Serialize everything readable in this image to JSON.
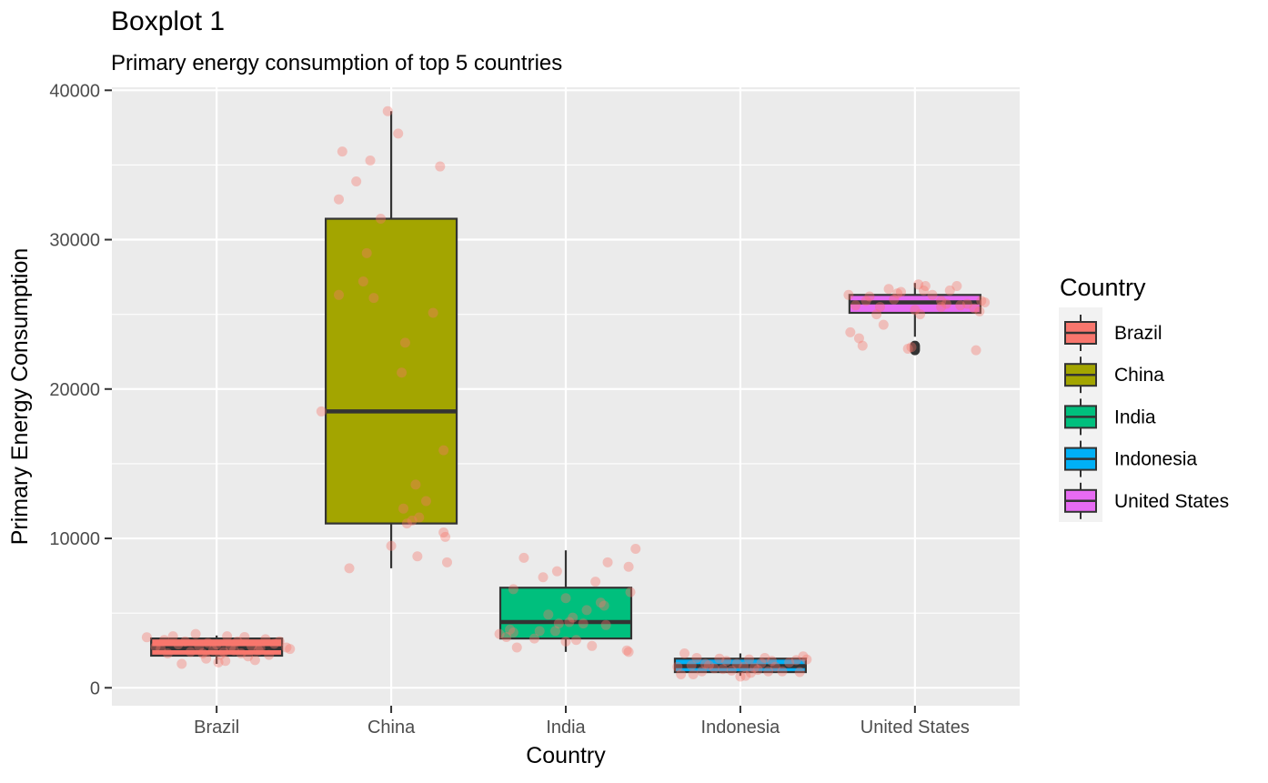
{
  "chart_data": {
    "type": "boxplot",
    "title": "Boxplot 1",
    "subtitle": "Primary energy consumption of top 5 countries",
    "xlabel": "Country",
    "ylabel": "Primary Energy Consumption",
    "ylim": [
      -1200,
      40200
    ],
    "yticks": [
      0,
      10000,
      20000,
      30000,
      40000
    ],
    "ytick_labels": [
      "0",
      "10000",
      "20000",
      "30000",
      "40000"
    ],
    "grid": true,
    "legend": {
      "title": "Country",
      "position": "right"
    },
    "colors": {
      "panel_bg": "#ebebeb",
      "grid": "#ffffff",
      "box_outline": "#333333",
      "point": "#f8766d"
    },
    "categories": [
      "Brazil",
      "China",
      "India",
      "Indonesia",
      "United States"
    ],
    "series": [
      {
        "name": "Brazil",
        "color": "#f8766d",
        "box": {
          "lower_whisker": 1600,
          "q1": 2150,
          "median": 2650,
          "q3": 3300,
          "upper_whisker": 3500
        },
        "outliers": [],
        "points": [
          [
            -0.4,
            3380
          ],
          [
            -0.35,
            2750
          ],
          [
            -0.3,
            3200
          ],
          [
            -0.28,
            2300
          ],
          [
            -0.25,
            3450
          ],
          [
            -0.22,
            2900
          ],
          [
            -0.2,
            1600
          ],
          [
            -0.18,
            3100
          ],
          [
            -0.15,
            2400
          ],
          [
            -0.12,
            3600
          ],
          [
            -0.1,
            2750
          ],
          [
            -0.08,
            2300
          ],
          [
            -0.05,
            3000
          ],
          [
            -0.02,
            2500
          ],
          [
            0.0,
            2900
          ],
          [
            0.02,
            2200
          ],
          [
            0.04,
            2400
          ],
          [
            0.05,
            1800
          ],
          [
            0.06,
            3450
          ],
          [
            0.08,
            2700
          ],
          [
            0.1,
            2500
          ],
          [
            0.12,
            3100
          ],
          [
            0.14,
            2300
          ],
          [
            0.16,
            3400
          ],
          [
            0.18,
            2100
          ],
          [
            0.2,
            2800
          ],
          [
            0.22,
            1850
          ],
          [
            0.25,
            2650
          ],
          [
            0.28,
            3250
          ],
          [
            0.3,
            2200
          ],
          [
            0.33,
            2950
          ],
          [
            0.36,
            3100
          ],
          [
            0.4,
            2700
          ],
          [
            0.42,
            2600
          ],
          [
            -0.32,
            2600
          ],
          [
            -0.06,
            1950
          ],
          [
            0.01,
            1700
          ],
          [
            0.24,
            2500
          ]
        ]
      },
      {
        "name": "China",
        "color": "#a3a500",
        "box": {
          "lower_whisker": 8000,
          "q1": 11000,
          "median": 18500,
          "q3": 31400,
          "upper_whisker": 38600
        },
        "outliers": [],
        "points": [
          [
            -0.3,
            32700
          ],
          [
            -0.28,
            35900
          ],
          [
            -0.24,
            8000
          ],
          [
            -0.2,
            33900
          ],
          [
            -0.16,
            27200
          ],
          [
            -0.14,
            29100
          ],
          [
            -0.12,
            35300
          ],
          [
            -0.1,
            26100
          ],
          [
            -0.06,
            31400
          ],
          [
            -0.02,
            38600
          ],
          [
            0.0,
            9500
          ],
          [
            0.04,
            37100
          ],
          [
            0.06,
            21100
          ],
          [
            0.08,
            23100
          ],
          [
            0.07,
            12000
          ],
          [
            0.09,
            11000
          ],
          [
            0.12,
            11200
          ],
          [
            0.14,
            13600
          ],
          [
            0.15,
            8800
          ],
          [
            0.16,
            11400
          ],
          [
            0.2,
            12500
          ],
          [
            0.24,
            25100
          ],
          [
            0.28,
            34900
          ],
          [
            0.3,
            15900
          ],
          [
            0.3,
            10400
          ],
          [
            0.31,
            10100
          ],
          [
            0.32,
            8400
          ],
          [
            -0.4,
            18500
          ],
          [
            -0.3,
            26300
          ]
        ]
      },
      {
        "name": "India",
        "color": "#00bf7d",
        "box": {
          "lower_whisker": 2400,
          "q1": 3300,
          "median": 4400,
          "q3": 6700,
          "upper_whisker": 9200
        },
        "outliers": [],
        "points": [
          [
            -0.38,
            3600
          ],
          [
            -0.34,
            3400
          ],
          [
            -0.32,
            3900
          ],
          [
            -0.3,
            6600
          ],
          [
            -0.3,
            3700
          ],
          [
            -0.28,
            2700
          ],
          [
            -0.24,
            8700
          ],
          [
            -0.18,
            3300
          ],
          [
            -0.15,
            3800
          ],
          [
            -0.13,
            7400
          ],
          [
            -0.1,
            4900
          ],
          [
            -0.06,
            3800
          ],
          [
            -0.05,
            7800
          ],
          [
            -0.04,
            4300
          ],
          [
            0.0,
            3100
          ],
          [
            0.0,
            6000
          ],
          [
            0.02,
            4400
          ],
          [
            0.04,
            4700
          ],
          [
            0.06,
            3200
          ],
          [
            0.1,
            4300
          ],
          [
            0.15,
            2800
          ],
          [
            0.17,
            7100
          ],
          [
            0.2,
            5700
          ],
          [
            0.22,
            5500
          ],
          [
            0.23,
            4200
          ],
          [
            0.24,
            8400
          ],
          [
            0.35,
            2500
          ],
          [
            0.36,
            2400
          ],
          [
            0.36,
            8100
          ],
          [
            0.37,
            6400
          ],
          [
            0.4,
            9300
          ],
          [
            0.12,
            5200
          ]
        ]
      },
      {
        "name": "Indonesia",
        "color": "#00b0f6",
        "box": {
          "lower_whisker": 800,
          "q1": 1050,
          "median": 1450,
          "q3": 1950,
          "upper_whisker": 2300
        },
        "outliers": [],
        "points": [
          [
            -0.36,
            1400
          ],
          [
            -0.34,
            900
          ],
          [
            -0.32,
            2300
          ],
          [
            -0.28,
            1500
          ],
          [
            -0.27,
            900
          ],
          [
            -0.25,
            2000
          ],
          [
            -0.22,
            1100
          ],
          [
            -0.2,
            1600
          ],
          [
            -0.15,
            1300
          ],
          [
            -0.12,
            1950
          ],
          [
            -0.08,
            1800
          ],
          [
            -0.05,
            1150
          ],
          [
            -0.02,
            1600
          ],
          [
            0.0,
            750
          ],
          [
            0.02,
            1400
          ],
          [
            0.03,
            800
          ],
          [
            0.05,
            1900
          ],
          [
            0.06,
            1000
          ],
          [
            0.08,
            1350
          ],
          [
            0.1,
            1200
          ],
          [
            0.12,
            1650
          ],
          [
            0.14,
            2000
          ],
          [
            0.16,
            1100
          ],
          [
            0.18,
            1800
          ],
          [
            0.2,
            1400
          ],
          [
            0.24,
            1100
          ],
          [
            0.28,
            1700
          ],
          [
            0.32,
            1850
          ],
          [
            0.34,
            1050
          ],
          [
            0.36,
            2100
          ],
          [
            0.38,
            1900
          ],
          [
            -0.1,
            1250
          ],
          [
            -0.18,
            1500
          ]
        ]
      },
      {
        "name": "United States",
        "color": "#e76bf3",
        "box": {
          "lower_whisker": 23500,
          "q1": 25100,
          "median": 25800,
          "q3": 26300,
          "upper_whisker": 27100
        },
        "outliers": [
          22600,
          22700,
          22800,
          22900
        ],
        "points": [
          [
            -0.38,
            26300
          ],
          [
            -0.37,
            23800
          ],
          [
            -0.34,
            25600
          ],
          [
            -0.32,
            23400
          ],
          [
            -0.3,
            22900
          ],
          [
            -0.28,
            25900
          ],
          [
            -0.26,
            26200
          ],
          [
            -0.22,
            25000
          ],
          [
            -0.2,
            25500
          ],
          [
            -0.18,
            24300
          ],
          [
            -0.15,
            26700
          ],
          [
            -0.12,
            26000
          ],
          [
            -0.1,
            26400
          ],
          [
            -0.08,
            26500
          ],
          [
            -0.04,
            22700
          ],
          [
            -0.02,
            22800
          ],
          [
            0.0,
            25300
          ],
          [
            0.02,
            27000
          ],
          [
            0.03,
            25000
          ],
          [
            0.05,
            26600
          ],
          [
            0.06,
            26900
          ],
          [
            0.1,
            26300
          ],
          [
            0.15,
            25900
          ],
          [
            0.18,
            25700
          ],
          [
            0.2,
            26600
          ],
          [
            0.24,
            26900
          ],
          [
            0.26,
            25600
          ],
          [
            0.3,
            25700
          ],
          [
            0.34,
            25400
          ],
          [
            0.35,
            22600
          ],
          [
            0.37,
            25200
          ],
          [
            0.38,
            25900
          ],
          [
            0.4,
            25800
          ],
          [
            0.15,
            25500
          ]
        ]
      }
    ]
  }
}
